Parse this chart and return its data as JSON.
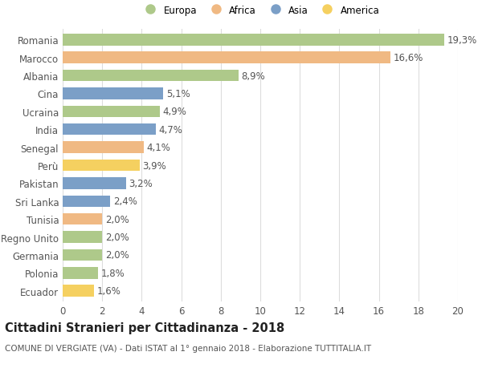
{
  "countries": [
    "Romania",
    "Marocco",
    "Albania",
    "Cina",
    "Ucraina",
    "India",
    "Senegal",
    "Perù",
    "Pakistan",
    "Sri Lanka",
    "Tunisia",
    "Regno Unito",
    "Germania",
    "Polonia",
    "Ecuador"
  ],
  "values": [
    19.3,
    16.6,
    8.9,
    5.1,
    4.9,
    4.7,
    4.1,
    3.9,
    3.2,
    2.4,
    2.0,
    2.0,
    2.0,
    1.8,
    1.6
  ],
  "labels": [
    "19,3%",
    "16,6%",
    "8,9%",
    "5,1%",
    "4,9%",
    "4,7%",
    "4,1%",
    "3,9%",
    "3,2%",
    "2,4%",
    "2,0%",
    "2,0%",
    "2,0%",
    "1,8%",
    "1,6%"
  ],
  "continents": [
    "Europa",
    "Africa",
    "Europa",
    "Asia",
    "Europa",
    "Asia",
    "Africa",
    "America",
    "Asia",
    "Asia",
    "Africa",
    "Europa",
    "Europa",
    "Europa",
    "America"
  ],
  "colors": {
    "Europa": "#aec98a",
    "Africa": "#f0b983",
    "Asia": "#7b9fc7",
    "America": "#f5d060"
  },
  "legend_order": [
    "Europa",
    "Africa",
    "Asia",
    "America"
  ],
  "title": "Cittadini Stranieri per Cittadinanza - 2018",
  "subtitle": "COMUNE DI VERGIATE (VA) - Dati ISTAT al 1° gennaio 2018 - Elaborazione TUTTITALIA.IT",
  "xlim": [
    0,
    20
  ],
  "xticks": [
    0,
    2,
    4,
    6,
    8,
    10,
    12,
    14,
    16,
    18,
    20
  ],
  "background_color": "#ffffff",
  "grid_color": "#dddddd",
  "bar_height": 0.65,
  "label_fontsize": 8.5,
  "tick_fontsize": 8.5,
  "title_fontsize": 10.5,
  "subtitle_fontsize": 7.5
}
